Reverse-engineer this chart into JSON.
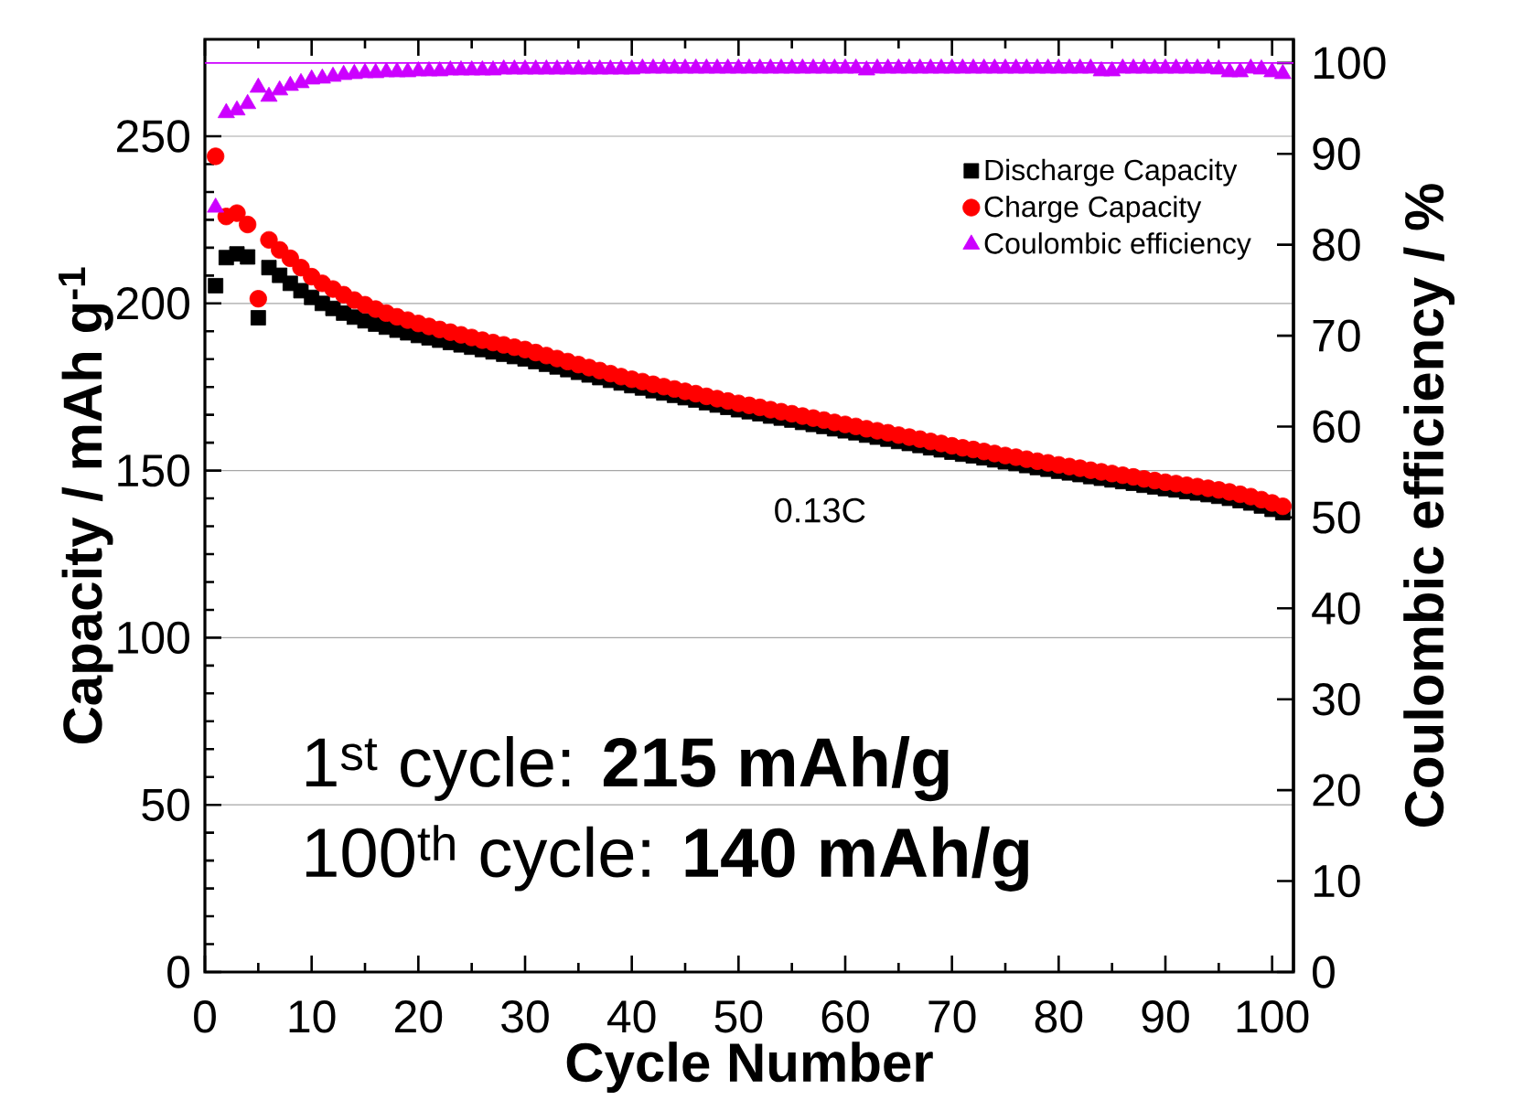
{
  "chart_data": {
    "type": "scatter",
    "xlabel": "Cycle Number",
    "ylabel": "Capacity / mAh g$^{-1}$",
    "y2label": "Coulombic efficiency / %",
    "x": [
      1,
      2,
      3,
      4,
      5,
      6,
      7,
      8,
      9,
      10,
      11,
      12,
      13,
      14,
      15,
      16,
      17,
      18,
      19,
      20,
      21,
      22,
      23,
      24,
      25,
      26,
      27,
      28,
      29,
      30,
      31,
      32,
      33,
      34,
      35,
      36,
      37,
      38,
      39,
      40,
      41,
      42,
      43,
      44,
      45,
      46,
      47,
      48,
      49,
      50,
      51,
      52,
      53,
      54,
      55,
      56,
      57,
      58,
      59,
      60,
      61,
      62,
      63,
      64,
      65,
      66,
      67,
      68,
      69,
      70,
      71,
      72,
      73,
      74,
      75,
      76,
      77,
      78,
      79,
      80,
      81,
      82,
      83,
      84,
      85,
      86,
      87,
      88,
      89,
      90,
      91,
      92,
      93,
      94,
      95,
      96,
      97,
      98,
      99,
      100,
      101
    ],
    "xlim": [
      0,
      102
    ],
    "xticks": [
      0,
      10,
      20,
      30,
      40,
      50,
      60,
      70,
      80,
      90,
      100
    ],
    "ylim": [
      0,
      279
    ],
    "yticks": [
      0,
      50,
      100,
      150,
      200,
      250
    ],
    "y2lim": [
      0,
      102.6
    ],
    "y2ticks": [
      0,
      10,
      20,
      30,
      40,
      50,
      60,
      70,
      80,
      90,
      100
    ],
    "grid": "y",
    "legend": "top right",
    "series": [
      {
        "name": "Discharge Capacity",
        "color": "#000000",
        "marker": "square",
        "values": [
          205.3,
          213.7,
          214.8,
          213.9,
          195.7,
          210.7,
          208.4,
          206.0,
          203.8,
          201.8,
          200.0,
          198.5,
          197.1,
          195.9,
          194.8,
          193.8,
          192.9,
          192.0,
          191.2,
          190.4,
          189.7,
          189.0,
          188.3,
          187.6,
          186.9,
          186.2,
          185.5,
          184.8,
          184.1,
          183.4,
          182.6,
          181.8,
          181.0,
          180.2,
          179.4,
          178.6,
          177.8,
          177.0,
          176.2,
          175.4,
          174.7,
          173.9,
          173.2,
          172.5,
          171.8,
          171.1,
          170.3,
          169.6,
          168.9,
          168.2,
          167.6,
          167.0,
          166.3,
          165.7,
          165.1,
          164.4,
          163.8,
          163.2,
          162.5,
          161.9,
          161.3,
          160.6,
          160.0,
          159.4,
          158.7,
          158.1,
          157.5,
          156.8,
          156.2,
          155.5,
          154.9,
          154.4,
          153.8,
          153.2,
          152.6,
          152.1,
          151.5,
          150.9,
          150.4,
          149.8,
          149.3,
          148.8,
          148.2,
          147.7,
          147.2,
          146.7,
          146.2,
          145.6,
          145.1,
          144.6,
          144.2,
          143.7,
          143.3,
          142.8,
          142.3,
          141.7,
          141.0,
          140.3,
          139.4,
          138.4,
          137.4
        ]
      },
      {
        "name": "Charge Capacity",
        "color": "#ff0000",
        "marker": "circle",
        "values": [
          244,
          226,
          227,
          223.6,
          201.4,
          219,
          216,
          213.5,
          210.7,
          208,
          206,
          204.3,
          202.6,
          201,
          199.6,
          198.3,
          197.1,
          196,
          195,
          194,
          193.1,
          192.2,
          191.4,
          190.6,
          189.8,
          189,
          188.3,
          187.6,
          186.9,
          186.2,
          185.3,
          184.4,
          183.5,
          182.6,
          181.7,
          180.8,
          179.9,
          179.0,
          178.1,
          177.3,
          176.6,
          175.8,
          175.1,
          174.4,
          173.7,
          173.0,
          172.2,
          171.5,
          170.8,
          170.1,
          169.5,
          168.9,
          168.2,
          167.6,
          167.0,
          166.3,
          165.7,
          165.1,
          164.4,
          163.8,
          163.2,
          162.5,
          161.9,
          161.3,
          160.6,
          160.0,
          159.4,
          158.7,
          158.1,
          157.4,
          156.8,
          156.3,
          155.7,
          155.1,
          154.5,
          154.0,
          153.4,
          152.8,
          152.3,
          151.7,
          151.2,
          150.7,
          150.1,
          149.6,
          149.1,
          148.6,
          148.1,
          147.5,
          147.0,
          146.5,
          146.1,
          145.6,
          145.2,
          144.7,
          144.2,
          143.6,
          142.9,
          142.2,
          141.3,
          140.3,
          139.3
        ]
      },
      {
        "name": "Coulombic efficiency",
        "color": "#cc00ff",
        "marker": "triangle",
        "axis": "y2",
        "values": [
          84.1,
          94.5,
          94.8,
          95.5,
          97.3,
          96.3,
          97.0,
          97.5,
          97.8,
          98.2,
          98.3,
          98.5,
          98.7,
          98.8,
          98.9,
          98.9,
          99.0,
          99.0,
          99.0,
          99.1,
          99.1,
          99.1,
          99.2,
          99.2,
          99.2,
          99.2,
          99.2,
          99.3,
          99.3,
          99.3,
          99.3,
          99.3,
          99.3,
          99.3,
          99.3,
          99.3,
          99.3,
          99.3,
          99.3,
          99.3,
          99.4,
          99.4,
          99.4,
          99.4,
          99.4,
          99.4,
          99.4,
          99.4,
          99.4,
          99.4,
          99.4,
          99.4,
          99.4,
          99.4,
          99.4,
          99.4,
          99.4,
          99.4,
          99.4,
          99.4,
          99.4,
          99.2,
          99.4,
          99.4,
          99.4,
          99.4,
          99.4,
          99.4,
          99.4,
          99.4,
          99.4,
          99.4,
          99.4,
          99.4,
          99.4,
          99.4,
          99.4,
          99.4,
          99.4,
          99.4,
          99.4,
          99.4,
          99.4,
          99.1,
          99.1,
          99.4,
          99.4,
          99.4,
          99.4,
          99.4,
          99.4,
          99.4,
          99.4,
          99.4,
          99.3,
          99.0,
          99.0,
          99.4,
          99.3,
          99.0,
          98.8
        ]
      }
    ],
    "ref_lines": [
      {
        "axis": "y2",
        "value": 100,
        "color": "#cc00ff",
        "line_style": "solid"
      }
    ],
    "annotations": [
      "0.13C",
      "1$^{st}$ cycle: **215 mAh/g**",
      "100$^{th}$ cycle: **140 mAh/g**"
    ]
  }
}
